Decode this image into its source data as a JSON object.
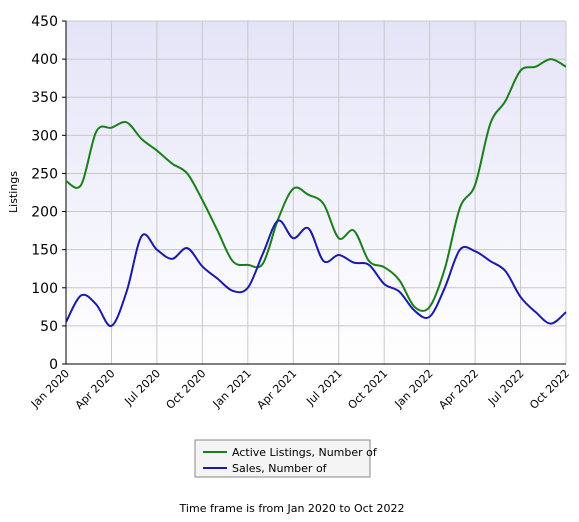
{
  "chart_data": {
    "type": "line",
    "y_label": "Listings",
    "footer": "Time frame is from Jan 2020 to Oct 2022",
    "categories": [
      "Jan 2020",
      null,
      null,
      "Apr 2020",
      null,
      null,
      "Jul 2020",
      null,
      null,
      "Oct 2020",
      null,
      null,
      "Jan 2021",
      null,
      null,
      "Apr 2021",
      null,
      null,
      "Jul 2021",
      null,
      null,
      "Oct 2021",
      null,
      null,
      "Jan 2022",
      null,
      null,
      "Apr 2022",
      null,
      null,
      "Jul 2022",
      null,
      null,
      "Oct 2022"
    ],
    "series": [
      {
        "name": "Active Listings, Number of",
        "color": "#1a7f1a",
        "values": [
          240,
          235,
          305,
          310,
          317,
          295,
          280,
          263,
          250,
          215,
          175,
          135,
          130,
          132,
          190,
          230,
          222,
          210,
          165,
          175,
          135,
          127,
          110,
          75,
          75,
          125,
          205,
          235,
          315,
          345,
          385,
          390,
          400,
          390
        ]
      },
      {
        "name": "Sales, Number of",
        "color": "#1a1aaa",
        "values": [
          55,
          90,
          78,
          50,
          95,
          168,
          150,
          138,
          152,
          128,
          112,
          96,
          100,
          145,
          188,
          165,
          178,
          135,
          143,
          133,
          130,
          105,
          95,
          70,
          62,
          100,
          150,
          148,
          135,
          122,
          88,
          68,
          53,
          68
        ]
      }
    ],
    "ylim": [
      0,
      450
    ],
    "yticks": [
      0,
      50,
      100,
      150,
      200,
      250,
      300,
      350,
      400,
      450
    ],
    "grid": true
  }
}
